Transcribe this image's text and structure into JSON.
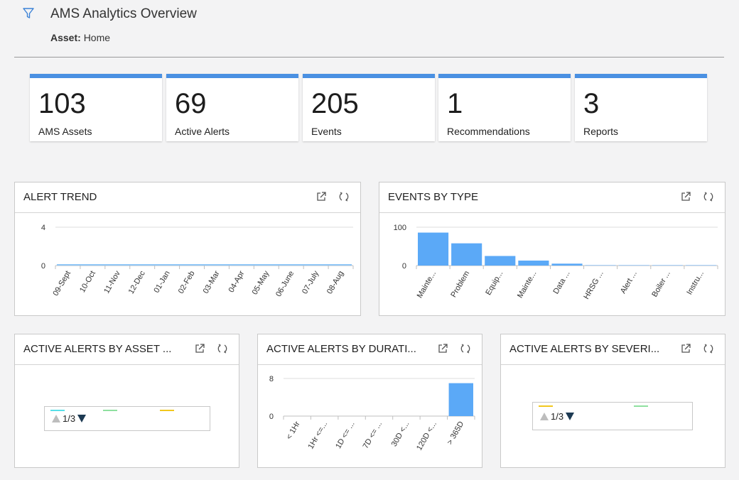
{
  "header": {
    "title": "AMS Analytics Overview",
    "asset_label": "Asset:",
    "asset_value": "Home",
    "filter_icon": "filter-icon"
  },
  "kpis": [
    {
      "value": "103",
      "label": "AMS Assets"
    },
    {
      "value": "69",
      "label": "Active Alerts"
    },
    {
      "value": "205",
      "label": "Events"
    },
    {
      "value": "1",
      "label": "Recommendations"
    },
    {
      "value": "3",
      "label": "Reports"
    }
  ],
  "colors": {
    "accent": "#4a90e2",
    "bar": "#5ba9f7",
    "line": "#8ec5f5"
  },
  "panels": {
    "alert_trend": {
      "title": "ALERT TREND"
    },
    "events_by_type": {
      "title": "EVENTS BY TYPE"
    },
    "by_asset": {
      "title": "ACTIVE ALERTS BY ASSET ...",
      "pager": "1/3"
    },
    "by_duration": {
      "title": "ACTIVE ALERTS BY DURATI..."
    },
    "by_severity": {
      "title": "ACTIVE ALERTS BY SEVERI...",
      "pager": "1/3"
    }
  },
  "chart_data": [
    {
      "type": "line",
      "title": "ALERT TREND",
      "categories": [
        "09-Sept",
        "10-Oct",
        "11-Nov",
        "12-Dec",
        "01-Jan",
        "02-Feb",
        "03-Mar",
        "04-Apr",
        "05-May",
        "06-June",
        "07-July",
        "08-Aug"
      ],
      "values": [
        0,
        0,
        0,
        0,
        0,
        0,
        0,
        0,
        0,
        0,
        0,
        0
      ],
      "yticks": [
        "4",
        "0"
      ],
      "ylim": [
        0,
        4
      ]
    },
    {
      "type": "bar",
      "title": "EVENTS BY TYPE",
      "categories": [
        "Mainte...",
        "Problem",
        "Equip...",
        "Mainte...",
        "Data ...",
        "HRSG ...",
        "Alert ...",
        "Boiler ...",
        "Instru..."
      ],
      "values": [
        86,
        58,
        25,
        13,
        5,
        1,
        1,
        1,
        1
      ],
      "yticks": [
        "100",
        "0"
      ],
      "ylim": [
        0,
        100
      ]
    },
    {
      "type": "bar",
      "title": "ACTIVE ALERTS BY DURATI...",
      "categories": [
        "< 1Hr",
        "1Hr <=...",
        "1D <= ...",
        "7D <= ...",
        "30D <...",
        "120D <...",
        "> 365D"
      ],
      "values": [
        0,
        0,
        0,
        0,
        0,
        0,
        7
      ],
      "yticks": [
        "8",
        "0"
      ],
      "ylim": [
        0,
        8
      ]
    }
  ],
  "legends": {
    "by_asset": [
      "#58e0e8",
      "#8fe0a0",
      "#f2c71e"
    ],
    "by_severity": [
      "#f2c71e",
      "#8fe0a0"
    ]
  }
}
